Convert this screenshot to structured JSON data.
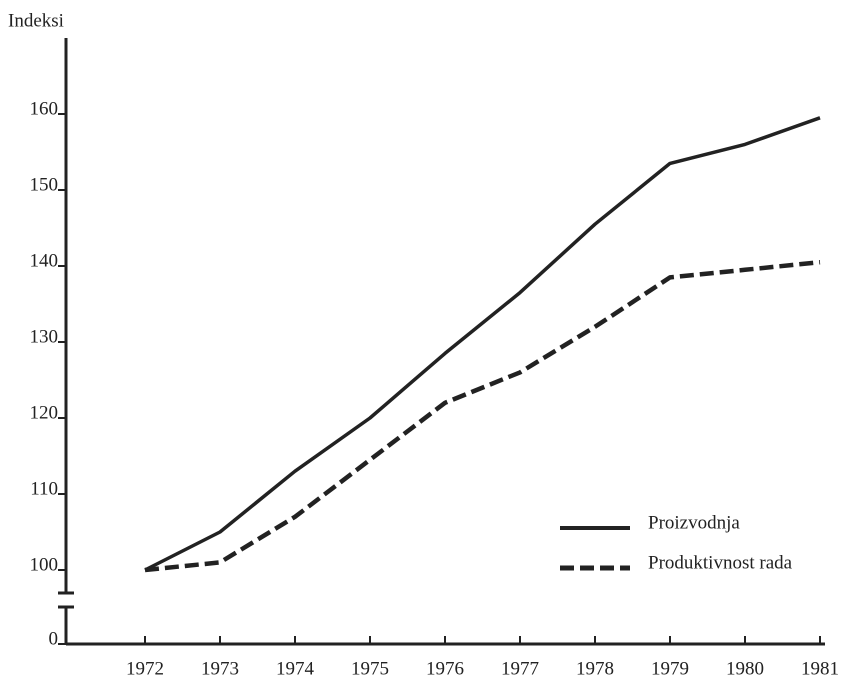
{
  "chart_data": {
    "type": "line",
    "y_label": "Indeksi",
    "categories": [
      "1972",
      "1973",
      "1974",
      "1975",
      "1976",
      "1977",
      "1978",
      "1979",
      "1980",
      "1981"
    ],
    "series": [
      {
        "name": "Proizvodnja",
        "color": "#222222",
        "dash": "solid",
        "values": [
          100,
          105,
          113,
          120,
          128.5,
          136.5,
          145.5,
          153.5,
          156,
          159.5
        ]
      },
      {
        "name": "Produktivnost rada",
        "color": "#222222",
        "dash": "dashed",
        "values": [
          100,
          101,
          107,
          114.5,
          122,
          126,
          132,
          138.5,
          139.5,
          140.5
        ]
      }
    ],
    "ylim": [
      0,
      170
    ],
    "yticks": [
      0,
      100,
      110,
      120,
      130,
      140,
      150,
      160
    ],
    "axis_break": true,
    "grid": false,
    "legend": "lower right"
  }
}
